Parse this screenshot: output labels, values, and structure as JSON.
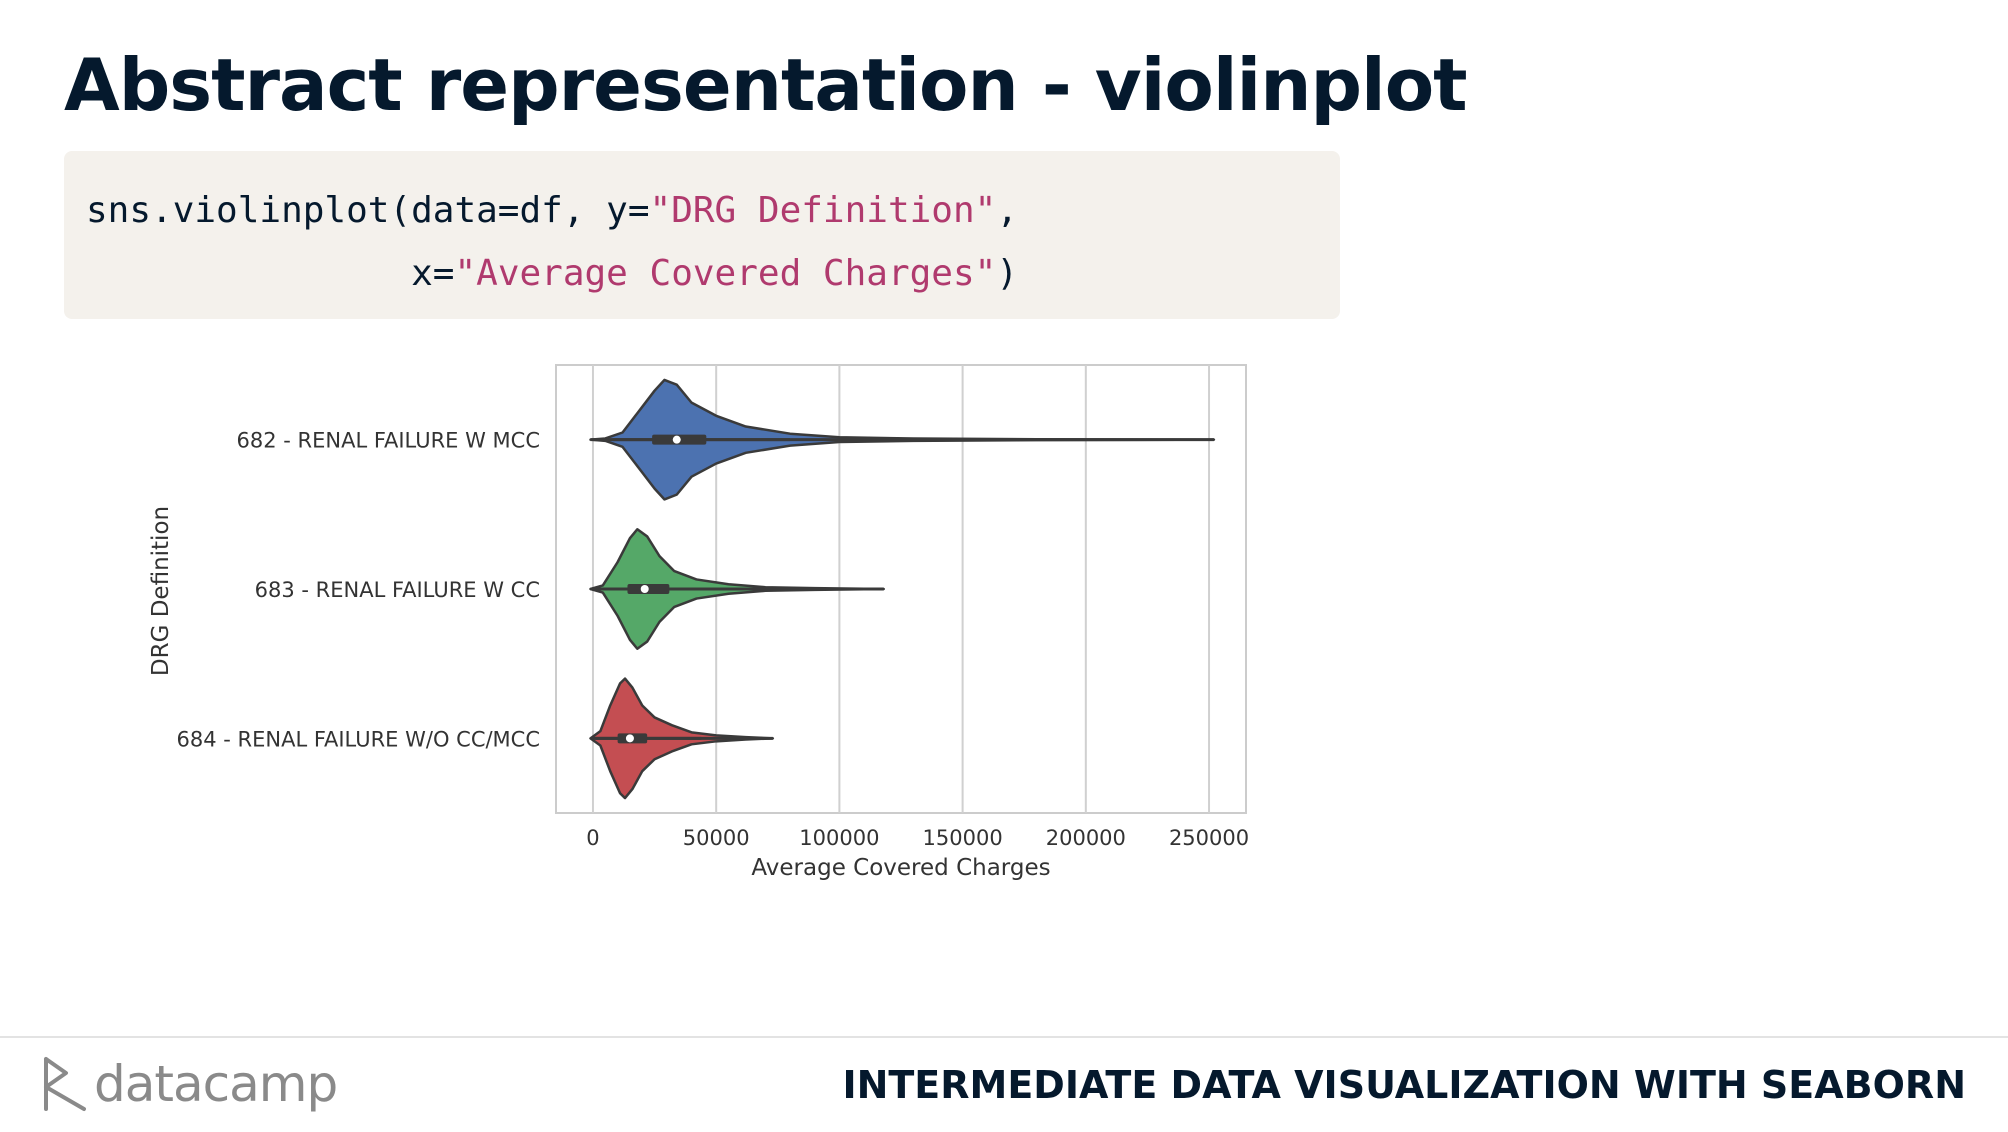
{
  "slide": {
    "title": "Abstract representation - violinplot",
    "code": {
      "line1_a": "sns.violinplot(data=df, y=",
      "line1_str": "\"DRG Definition\"",
      "line1_b": ",",
      "line2_a": "x=",
      "line2_str": "\"Average Covered Charges\"",
      "line2_b": ")"
    }
  },
  "footer": {
    "logo_text": "datacamp",
    "course_title": "INTERMEDIATE DATA VISUALIZATION WITH SEABORN"
  },
  "colors": {
    "title": "#05192d",
    "code_bg": "#f4f1ec",
    "code_string": "#b03a6e",
    "violin_blue": "#4c72b0",
    "violin_green": "#55a868",
    "violin_red": "#c44e52"
  },
  "chart_data": {
    "type": "violin",
    "orientation": "horizontal",
    "xlabel": "Average Covered Charges",
    "ylabel": "DRG Definition",
    "xlim": [
      -15000,
      265000
    ],
    "xticks": [
      0,
      50000,
      100000,
      150000,
      200000,
      250000
    ],
    "grid": "vertical",
    "categories": [
      "682 - RENAL FAILURE W MCC",
      "683 - RENAL FAILURE W CC",
      "684 - RENAL FAILURE W/O CC/MCC"
    ],
    "series": [
      {
        "category": "682 - RENAL FAILURE W MCC",
        "color": "#4c72b0",
        "min": -1000,
        "max": 252000,
        "q1": 24000,
        "median": 34000,
        "q3": 46000,
        "whisker_low": 8000,
        "whisker_high": 80000,
        "density": [
          [
            -1000,
            0.0
          ],
          [
            5000,
            0.02
          ],
          [
            12000,
            0.12
          ],
          [
            20000,
            0.55
          ],
          [
            25000,
            0.82
          ],
          [
            29000,
            1.0
          ],
          [
            34000,
            0.92
          ],
          [
            40000,
            0.62
          ],
          [
            50000,
            0.4
          ],
          [
            62000,
            0.22
          ],
          [
            80000,
            0.1
          ],
          [
            100000,
            0.04
          ],
          [
            130000,
            0.02
          ],
          [
            180000,
            0.008
          ],
          [
            252000,
            0.0
          ]
        ]
      },
      {
        "category": "683 - RENAL FAILURE W CC",
        "color": "#55a868",
        "min": -1000,
        "max": 118000,
        "q1": 14000,
        "median": 21000,
        "q3": 31000,
        "whisker_low": 2000,
        "whisker_high": 60000,
        "density": [
          [
            -1000,
            0.0
          ],
          [
            4000,
            0.06
          ],
          [
            10000,
            0.45
          ],
          [
            15000,
            0.85
          ],
          [
            18000,
            1.0
          ],
          [
            22000,
            0.88
          ],
          [
            27000,
            0.55
          ],
          [
            33000,
            0.3
          ],
          [
            42000,
            0.16
          ],
          [
            55000,
            0.08
          ],
          [
            70000,
            0.03
          ],
          [
            90000,
            0.015
          ],
          [
            118000,
            0.0
          ]
        ]
      },
      {
        "category": "684 - RENAL FAILURE W/O CC/MCC",
        "color": "#c44e52",
        "min": -1000,
        "max": 73000,
        "q1": 10000,
        "median": 15000,
        "q3": 22000,
        "whisker_low": 1000,
        "whisker_high": 44000,
        "density": [
          [
            -1000,
            0.0
          ],
          [
            3000,
            0.12
          ],
          [
            7000,
            0.55
          ],
          [
            11000,
            0.92
          ],
          [
            13000,
            1.0
          ],
          [
            16000,
            0.85
          ],
          [
            20000,
            0.55
          ],
          [
            25000,
            0.35
          ],
          [
            32000,
            0.22
          ],
          [
            40000,
            0.1
          ],
          [
            50000,
            0.05
          ],
          [
            62000,
            0.02
          ],
          [
            73000,
            0.0
          ]
        ]
      }
    ]
  }
}
